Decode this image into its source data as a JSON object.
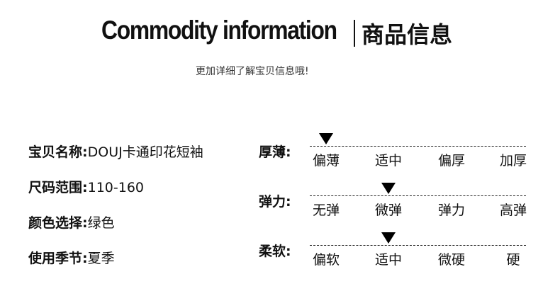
{
  "header": {
    "title_en": "Commodity information",
    "title_cn": "商品信息",
    "subtitle": "更加详细了解宝贝信息哦!"
  },
  "info": [
    {
      "label": "宝贝名称:",
      "value": "DOUJ卡通印花短袖"
    },
    {
      "label": "尺码范围:",
      "value": "110-160"
    },
    {
      "label": "颜色选择:",
      "value": "绿色"
    },
    {
      "label": "使用季节:",
      "value": "夏季"
    }
  ],
  "scales": [
    {
      "label": "厚薄:",
      "options": [
        "偏薄",
        "适中",
        "偏厚",
        "加厚"
      ],
      "selected_index": 0
    },
    {
      "label": "弹力:",
      "options": [
        "无弹",
        "微弹",
        "弹力",
        "高弹"
      ],
      "selected_index": 1
    },
    {
      "label": "柔软:",
      "options": [
        "偏软",
        "适中",
        "微硬",
        "硬"
      ],
      "selected_index": 1
    }
  ]
}
